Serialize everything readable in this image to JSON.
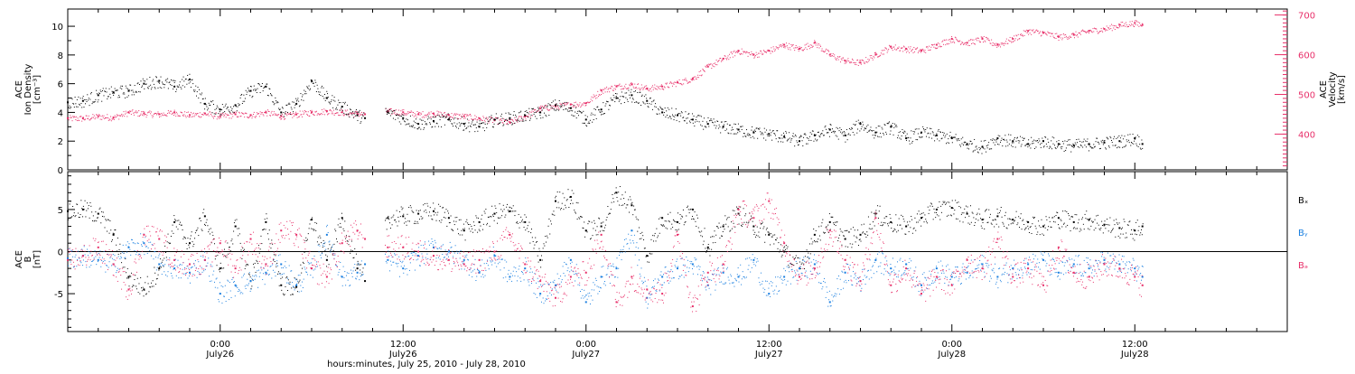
{
  "xaxis": {
    "title": "hours:minutes, July 25, 2010 - July 28, 2010",
    "ticks": [
      {
        "hour": 24,
        "time": "0:00",
        "date": "July26"
      },
      {
        "hour": 36,
        "time": "12:00",
        "date": "July26"
      },
      {
        "hour": 48,
        "time": "0:00",
        "date": "July27"
      },
      {
        "hour": 60,
        "time": "12:00",
        "date": "July27"
      },
      {
        "hour": 72,
        "time": "0:00",
        "date": "July28"
      },
      {
        "hour": 84,
        "time": "12:00",
        "date": "July28"
      }
    ]
  },
  "colors": {
    "black": "#000000",
    "pink": "#e8306a",
    "blue": "#1a7fe0"
  },
  "chart_data": [
    {
      "type": "scatter",
      "panel": "density-velocity",
      "xlim_hours": [
        14,
        94
      ],
      "ylabel_left": [
        "ACE",
        "Ion Density",
        "[cm⁻³]"
      ],
      "ylabel_right": [
        "ACE",
        "Velocity",
        "[km/s]"
      ],
      "yleft_ticks": [
        "0",
        "2",
        "4",
        "6",
        "8",
        "10"
      ],
      "yleft_lim": [
        0,
        11.2
      ],
      "yright_ticks": [
        "400",
        "500",
        "600",
        "700"
      ],
      "yright_lim": [
        310,
        715
      ],
      "series": [
        {
          "color": "black",
          "axis": "left",
          "x_hours": [
            14,
            15,
            16,
            17,
            18,
            19,
            20,
            21,
            22,
            23,
            24,
            25,
            26,
            27,
            28,
            29,
            30,
            31,
            32,
            33,
            33.5,
            35,
            36,
            37,
            38,
            39,
            40,
            41,
            42,
            43,
            44,
            45,
            46,
            47,
            48,
            49,
            50,
            51,
            52,
            53,
            54,
            55,
            56,
            57,
            58,
            59,
            60,
            61,
            62,
            63,
            64,
            65,
            66,
            67,
            68,
            69,
            70,
            71,
            72,
            73,
            74,
            75,
            76,
            77,
            78,
            79,
            80,
            81,
            82,
            83,
            84,
            84.5
          ],
          "values": [
            4.7,
            4.8,
            5.2,
            5.4,
            5.5,
            6.0,
            6.2,
            5.8,
            6.3,
            4.6,
            4.2,
            4.5,
            5.5,
            5.8,
            4.0,
            4.6,
            6.2,
            5.0,
            4.4,
            3.8,
            3.6,
            4.0,
            3.6,
            3.2,
            3.4,
            3.5,
            3.2,
            3.0,
            3.5,
            3.6,
            3.8,
            4.0,
            4.5,
            4.3,
            3.5,
            4.2,
            5.0,
            5.2,
            4.8,
            4.0,
            3.8,
            3.5,
            3.2,
            3.0,
            2.8,
            2.6,
            2.5,
            2.3,
            2.0,
            2.4,
            2.8,
            2.4,
            3.2,
            2.6,
            3.0,
            2.2,
            2.6,
            2.4,
            2.2,
            1.8,
            1.6,
            2.2,
            2.0,
            1.8,
            2.0,
            1.8,
            1.7,
            1.8,
            1.9,
            2.0,
            2.2,
            1.8
          ]
        },
        {
          "color": "pink",
          "axis": "right",
          "x_hours": [
            14,
            15,
            16,
            17,
            18,
            19,
            20,
            21,
            22,
            23,
            24,
            25,
            26,
            27,
            28,
            29,
            30,
            31,
            32,
            33,
            33.5,
            35,
            36,
            37,
            38,
            39,
            40,
            41,
            42,
            43,
            44,
            45,
            46,
            47,
            48,
            49,
            50,
            51,
            52,
            53,
            54,
            55,
            56,
            57,
            58,
            59,
            60,
            61,
            62,
            63,
            64,
            65,
            66,
            67,
            68,
            69,
            70,
            71,
            72,
            73,
            74,
            75,
            76,
            77,
            78,
            79,
            80,
            81,
            82,
            83,
            84,
            84.5
          ],
          "values": [
            440,
            440,
            445,
            442,
            455,
            452,
            450,
            455,
            448,
            452,
            445,
            450,
            448,
            455,
            445,
            450,
            455,
            458,
            455,
            452,
            450,
            458,
            455,
            450,
            452,
            448,
            445,
            440,
            435,
            430,
            445,
            465,
            470,
            475,
            478,
            510,
            520,
            525,
            515,
            520,
            530,
            540,
            570,
            590,
            610,
            600,
            610,
            625,
            615,
            630,
            600,
            585,
            580,
            600,
            620,
            615,
            610,
            625,
            640,
            630,
            640,
            625,
            640,
            660,
            655,
            645,
            650,
            660,
            665,
            675,
            680,
            675
          ]
        }
      ]
    },
    {
      "type": "scatter",
      "panel": "magnetic-field",
      "xlim_hours": [
        14,
        94
      ],
      "ylabel_left": [
        "ACE",
        "B",
        "[nT]"
      ],
      "yleft_ticks": [
        "-5",
        "0",
        "5"
      ],
      "yleft_lim": [
        -9.5,
        9.5
      ],
      "legend": [
        "Bₓ",
        "Bᵧ",
        "Bₔ"
      ],
      "legend_position": "right",
      "series": [
        {
          "name": "Bx",
          "color": "black",
          "x_hours": [
            14,
            15,
            16,
            17,
            18,
            19,
            20,
            21,
            22,
            23,
            24,
            25,
            26,
            27,
            28,
            29,
            30,
            31,
            32,
            33,
            33.5,
            35,
            36,
            37,
            38,
            39,
            40,
            41,
            42,
            43,
            44,
            45,
            46,
            47,
            48,
            49,
            50,
            51,
            52,
            53,
            54,
            55,
            56,
            57,
            58,
            59,
            60,
            61,
            62,
            63,
            64,
            65,
            66,
            67,
            68,
            69,
            70,
            71,
            72,
            73,
            74,
            75,
            76,
            77,
            78,
            79,
            80,
            81,
            82,
            83,
            84,
            84.5
          ],
          "values": [
            4.8,
            5.0,
            4.5,
            2.0,
            -3.0,
            -4.5,
            -2.0,
            3.5,
            1.0,
            4.2,
            -2.0,
            3.0,
            -3.5,
            3.5,
            -4.0,
            -4.2,
            3.8,
            -1.0,
            4.0,
            -2.0,
            -3.5,
            4.0,
            4.2,
            4.5,
            4.8,
            4.0,
            2.5,
            3.5,
            4.5,
            4.8,
            3.5,
            -1.0,
            6.0,
            6.5,
            2.5,
            3.0,
            7.0,
            5.5,
            -0.5,
            4.0,
            3.5,
            5.0,
            0.5,
            3.0,
            4.5,
            3.0,
            2.0,
            0.0,
            -2.0,
            2.0,
            3.5,
            1.5,
            2.0,
            4.5,
            3.5,
            3.0,
            4.0,
            5.0,
            5.2,
            4.5,
            3.8,
            4.2,
            3.8,
            3.5,
            3.0,
            4.0,
            3.5,
            3.8,
            3.2,
            2.8,
            2.5,
            3.0
          ]
        },
        {
          "name": "By",
          "color": "blue",
          "x_hours": [
            14,
            15,
            16,
            17,
            18,
            19,
            20,
            21,
            22,
            23,
            24,
            25,
            26,
            27,
            28,
            29,
            30,
            31,
            32,
            33,
            33.5,
            35,
            36,
            37,
            38,
            39,
            40,
            41,
            42,
            43,
            44,
            45,
            46,
            47,
            48,
            49,
            50,
            51,
            52,
            53,
            54,
            55,
            56,
            57,
            58,
            59,
            60,
            61,
            62,
            63,
            64,
            65,
            66,
            67,
            68,
            69,
            70,
            71,
            72,
            73,
            74,
            75,
            76,
            77,
            78,
            79,
            80,
            81,
            82,
            83,
            84,
            84.5
          ],
          "values": [
            -0.8,
            -0.5,
            -1.0,
            -1.5,
            0.5,
            1.0,
            -1.5,
            -2.0,
            -2.5,
            -1.0,
            -5.0,
            -4.0,
            -3.5,
            -2.5,
            -1.5,
            -4.0,
            -2.0,
            2.0,
            -3.0,
            -2.5,
            -1.5,
            -1.0,
            -2.0,
            -0.5,
            0.5,
            0.0,
            -1.0,
            -2.5,
            -0.5,
            -3.0,
            -2.0,
            -5.0,
            -4.0,
            -1.0,
            -6.0,
            -3.0,
            -2.0,
            2.5,
            -5.5,
            -3.0,
            -2.0,
            -1.5,
            -4.0,
            -2.5,
            -3.0,
            -1.0,
            -5.0,
            -3.0,
            -2.0,
            -1.5,
            -6.0,
            -2.5,
            -3.5,
            -1.0,
            -2.0,
            -1.5,
            -4.0,
            -2.0,
            -3.0,
            -2.5,
            -1.5,
            -3.0,
            -2.0,
            -1.5,
            -1.0,
            -2.5,
            -1.5,
            -2.0,
            -1.0,
            -1.5,
            -2.0,
            -3.0
          ]
        },
        {
          "name": "Bz",
          "color": "pink",
          "x_hours": [
            14,
            15,
            16,
            17,
            18,
            19,
            20,
            21,
            22,
            23,
            24,
            25,
            26,
            27,
            28,
            29,
            30,
            31,
            32,
            33,
            33.5,
            35,
            36,
            37,
            38,
            39,
            40,
            41,
            42,
            43,
            44,
            45,
            46,
            47,
            48,
            49,
            50,
            51,
            52,
            53,
            54,
            55,
            56,
            57,
            58,
            59,
            60,
            61,
            62,
            63,
            64,
            65,
            66,
            67,
            68,
            69,
            70,
            71,
            72,
            73,
            74,
            75,
            76,
            77,
            78,
            79,
            80,
            81,
            82,
            83,
            84,
            84.5
          ],
          "values": [
            -1.0,
            -0.5,
            0.5,
            -1.5,
            -4.5,
            2.0,
            1.5,
            -1.0,
            -1.5,
            -1.0,
            1.0,
            -2.0,
            1.5,
            -1.5,
            2.5,
            2.0,
            -2.0,
            -3.0,
            1.0,
            2.5,
            1.5,
            0.5,
            0.5,
            0.0,
            -0.5,
            -1.0,
            -1.5,
            -1.0,
            0.0,
            2.0,
            -1.5,
            -3.5,
            -5.5,
            -3.0,
            -2.5,
            2.0,
            -6.0,
            -3.0,
            -4.5,
            -5.0,
            2.0,
            -6.5,
            -2.5,
            -1.5,
            5.0,
            4.0,
            6.0,
            1.0,
            -3.0,
            -2.0,
            2.5,
            -1.0,
            -3.5,
            4.0,
            -4.0,
            -2.0,
            -5.0,
            -3.0,
            -4.0,
            -1.0,
            -2.0,
            1.5,
            -3.0,
            -2.0,
            -4.0,
            0.5,
            -2.5,
            -3.0,
            -1.5,
            -2.0,
            -3.0,
            -4.0
          ]
        }
      ]
    }
  ]
}
